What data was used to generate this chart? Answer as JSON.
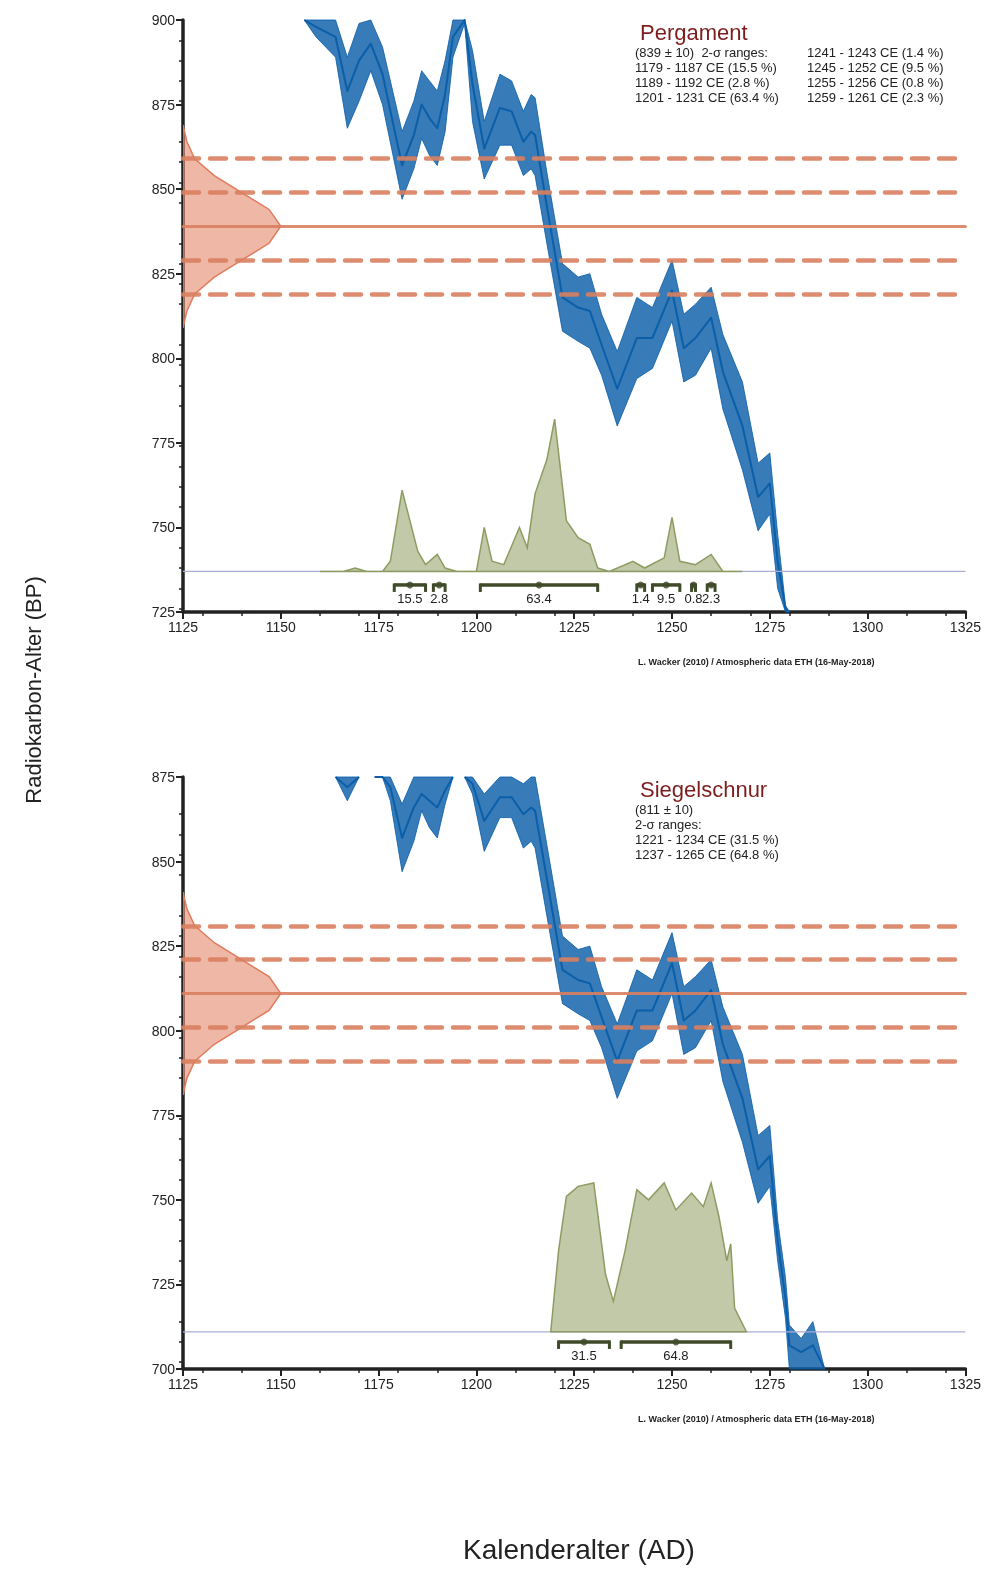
{
  "chart_data": [
    {
      "type": "area",
      "title": "Pergament",
      "annotations": [
        "(839 ± 10)  2-σ ranges:",
        "1179 - 1187 CE (15.5 %)",
        "1189 - 1192 CE (2.8 %)",
        "1201 - 1231 CE (63.4 %)",
        "1241 - 1243 CE (1.4 %)",
        "1245 - 1252 CE (9.5 %)",
        "1255 - 1256 CE (0.8 %)",
        "1259 - 1261 CE (2.3 %)",
        {
          "text": "15.5",
          "x": 1183,
          "y": 733
        },
        {
          "text": "2.8",
          "x": 1190.5,
          "y": 733
        },
        {
          "text": "63.4",
          "x": 1216,
          "y": 733
        },
        {
          "text": "1.4",
          "x": 1242,
          "y": 733
        },
        {
          "text": "9.5",
          "x": 1248.5,
          "y": 733
        },
        {
          "text": "0.8",
          "x": 1255.5,
          "y": 733
        },
        {
          "text": "2.3",
          "x": 1260,
          "y": 733
        },
        "L. Wacker (2010) / Atmospheric data ETH (16-May-2018)"
      ],
      "xlim": [
        1125,
        1325
      ],
      "xticks": [
        1125,
        1150,
        1175,
        1200,
        1225,
        1250,
        1275,
        1300,
        1325
      ],
      "ylim": [
        725,
        900
      ],
      "yticks": [
        725,
        750,
        775,
        800,
        825,
        850,
        875,
        900
      ],
      "grid": false,
      "series": [
        {
          "type": "line",
          "color": "#0b5ea8",
          "x": [
            1156,
            1159,
            1164,
            1167,
            1170,
            1173,
            1176,
            1181,
            1184,
            1186,
            1188,
            1190,
            1192,
            1194,
            1197,
            1199,
            1202,
            1206,
            1209,
            1212,
            1214,
            1215,
            1218,
            1222,
            1226,
            1229,
            1232,
            1236,
            1241,
            1245,
            1250,
            1253,
            1256,
            1260,
            1263,
            1268,
            1272,
            1275,
            1277,
            1279,
            1280
          ],
          "values": [
            900,
            898,
            895,
            879,
            888,
            893,
            884,
            857,
            866,
            875,
            871,
            868,
            878,
            895,
            900,
            881,
            862,
            874,
            873,
            864,
            867,
            866,
            845,
            818,
            815,
            814,
            804,
            791,
            806,
            806,
            820,
            803,
            806,
            812,
            796,
            780,
            759,
            763,
            740,
            726,
            725
          ],
          "upper": [
            900,
            900,
            900,
            889,
            899,
            900,
            892,
            867,
            876,
            885,
            882,
            879,
            888,
            900,
            900,
            891,
            870,
            884,
            882,
            873,
            878,
            877,
            855,
            828,
            824,
            825,
            813,
            802,
            818,
            815,
            829,
            813,
            816,
            821,
            807,
            793,
            769,
            772,
            748,
            727,
            725
          ],
          "lower": [
            900,
            895,
            889,
            868,
            876,
            885,
            875,
            847,
            856,
            865,
            860,
            857,
            867,
            889,
            899,
            870,
            853,
            863,
            863,
            854,
            856,
            854,
            834,
            808,
            805,
            803,
            795,
            780,
            794,
            797,
            811,
            793,
            795,
            803,
            785,
            767,
            749,
            754,
            732,
            725,
            725
          ]
        },
        {
          "type": "area",
          "color": "#8e9c62",
          "x": [
            1160,
            1166,
            1169,
            1172,
            1176,
            1178,
            1181,
            1183,
            1185,
            1187,
            1190,
            1192,
            1195,
            1200,
            1202,
            1204,
            1207,
            1211,
            1213,
            1215,
            1218,
            1220,
            1223,
            1226,
            1229,
            1231,
            1234,
            1240,
            1243,
            1248,
            1250,
            1252,
            1256,
            1260,
            1263,
            1268
          ],
          "values": [
            737,
            737,
            738,
            737,
            737,
            740,
            761,
            752,
            743,
            739,
            742,
            738,
            737,
            737,
            750,
            740,
            739,
            750,
            744,
            760,
            770,
            782,
            752,
            747,
            745,
            738,
            737,
            740,
            738,
            741,
            753,
            740,
            739,
            742,
            737,
            737
          ]
        },
        {
          "type": "line",
          "color": "#a9aed6",
          "x": [
            1125,
            1325
          ],
          "values": [
            737,
            737
          ]
        },
        {
          "type": "area",
          "color": "#e07b5c",
          "x": [
            1125,
            1126,
            1128,
            1133,
            1140,
            1147,
            1150,
            1147,
            1140,
            1133,
            1128,
            1126,
            1125
          ],
          "values": [
            809,
            814,
            819,
            824,
            829,
            834,
            839,
            844,
            849,
            854,
            859,
            864,
            869
          ]
        },
        {
          "type": "scatter",
          "color": "#3e4a28",
          "x": [
            1183,
            1190.5,
            1216,
            1242,
            1248.5,
            1255.5,
            1260
          ],
          "values": [
            733,
            733,
            733,
            733,
            733,
            733,
            733
          ],
          "xerrors": [
            [
              1179,
              1187
            ],
            [
              1189,
              1192
            ],
            [
              1201,
              1231
            ],
            [
              1241,
              1243
            ],
            [
              1245,
              1252
            ],
            [
              1255,
              1256
            ],
            [
              1259,
              1261
            ]
          ]
        }
      ],
      "ref_lines": [
        {
          "axis": "y",
          "value": 859,
          "color": "#d9805f",
          "line_style": "dashed"
        },
        {
          "axis": "y",
          "value": 849,
          "color": "#d9805f",
          "line_style": "dashed"
        },
        {
          "axis": "y",
          "value": 839,
          "color": "#d9805f",
          "line_style": "solid"
        },
        {
          "axis": "y",
          "value": 829,
          "color": "#d9805f",
          "line_style": "dashed"
        },
        {
          "axis": "y",
          "value": 819,
          "color": "#d9805f",
          "line_style": "dashed"
        }
      ]
    },
    {
      "type": "area",
      "title": "Siegelschnur",
      "xlabel": "Kalenderalter (AD)",
      "ylabel": "Radiokarbon-Alter (BP)",
      "annotations": [
        "(811 ± 10)",
        "2-σ ranges:",
        "1221 - 1234 CE (31.5 %)",
        "1237 - 1265 CE (64.8 %)",
        {
          "text": "31.5",
          "x": 1227.5,
          "y": 708
        },
        {
          "text": "64.8",
          "x": 1251,
          "y": 708
        },
        "L. Wacker (2010) / Atmospheric data ETH (16-May-2018)"
      ],
      "xlim": [
        1125,
        1325
      ],
      "xticks": [
        1125,
        1150,
        1175,
        1200,
        1225,
        1250,
        1275,
        1300,
        1325
      ],
      "ylim": [
        700,
        875
      ],
      "yticks": [
        700,
        725,
        750,
        775,
        800,
        825,
        850,
        875
      ],
      "grid": false,
      "series": [
        {
          "type": "line",
          "color": "#0b5ea8",
          "x": [
            1164,
            1167,
            1170,
            1172,
            1174,
            1176,
            1178,
            1181,
            1184,
            1186,
            1188,
            1190,
            1192,
            1194,
            1196,
            1197,
            1199,
            1202,
            1206,
            1209,
            1212,
            1214,
            1215,
            1218,
            1222,
            1226,
            1229,
            1232,
            1236,
            1241,
            1245,
            1250,
            1253,
            1256,
            1260,
            1263,
            1268,
            1272,
            1275,
            1277,
            1279,
            1280,
            1283,
            1286,
            1289
          ],
          "values": [
            875,
            872,
            875,
            null,
            875,
            875,
            872,
            857,
            866,
            870,
            868,
            866,
            871,
            875,
            null,
            875,
            873,
            862,
            869,
            869,
            864,
            866,
            865,
            845,
            818,
            815,
            814,
            804,
            791,
            806,
            806,
            820,
            803,
            806,
            812,
            796,
            780,
            759,
            763,
            738,
            721,
            707,
            705,
            707,
            700
          ],
          "upper": [
            875,
            875,
            875,
            null,
            875,
            875,
            875,
            867,
            875,
            875,
            875,
            875,
            875,
            875,
            null,
            875,
            875,
            870,
            875,
            875,
            873,
            875,
            875,
            855,
            828,
            824,
            825,
            813,
            802,
            818,
            815,
            829,
            813,
            816,
            821,
            807,
            793,
            769,
            772,
            744,
            727,
            713,
            709,
            714,
            700
          ],
          "lower": [
            875,
            868,
            875,
            null,
            875,
            875,
            868,
            847,
            856,
            865,
            860,
            857,
            867,
            875,
            null,
            875,
            870,
            853,
            863,
            863,
            854,
            856,
            854,
            834,
            808,
            805,
            803,
            795,
            780,
            794,
            797,
            811,
            793,
            795,
            803,
            785,
            767,
            749,
            754,
            732,
            715,
            700,
            700,
            700,
            700
          ]
        },
        {
          "type": "area",
          "color": "#8e9c62",
          "x": [
            1219,
            1221,
            1223,
            1226,
            1230,
            1233,
            1235,
            1238,
            1241,
            1244,
            1248,
            1251,
            1255,
            1258,
            1260,
            1262,
            1264,
            1265,
            1266,
            1269
          ],
          "values": [
            711,
            735,
            751,
            754,
            755,
            728,
            720,
            735,
            753,
            750,
            755,
            747,
            752,
            748,
            755,
            745,
            732,
            737,
            718,
            711
          ]
        },
        {
          "type": "line",
          "color": "#a9aed6",
          "x": [
            1125,
            1325
          ],
          "values": [
            711,
            711
          ]
        },
        {
          "type": "area",
          "color": "#e07b5c",
          "x": [
            1125,
            1126,
            1128,
            1133,
            1140,
            1147,
            1150,
            1147,
            1140,
            1133,
            1128,
            1126,
            1125
          ],
          "values": [
            781,
            786,
            791,
            796,
            801,
            806,
            811,
            816,
            821,
            826,
            831,
            836,
            841
          ]
        },
        {
          "type": "scatter",
          "color": "#3e4a28",
          "x": [
            1227.5,
            1251
          ],
          "values": [
            708,
            708
          ],
          "xerrors": [
            [
              1221,
              1234
            ],
            [
              1237,
              1265
            ]
          ]
        }
      ],
      "ref_lines": [
        {
          "axis": "y",
          "value": 831,
          "color": "#d9805f",
          "line_style": "dashed"
        },
        {
          "axis": "y",
          "value": 821,
          "color": "#d9805f",
          "line_style": "dashed"
        },
        {
          "axis": "y",
          "value": 811,
          "color": "#d9805f",
          "line_style": "solid"
        },
        {
          "axis": "y",
          "value": 801,
          "color": "#d9805f",
          "line_style": "dashed"
        },
        {
          "axis": "y",
          "value": 791,
          "color": "#d9805f",
          "line_style": "dashed"
        }
      ]
    }
  ]
}
